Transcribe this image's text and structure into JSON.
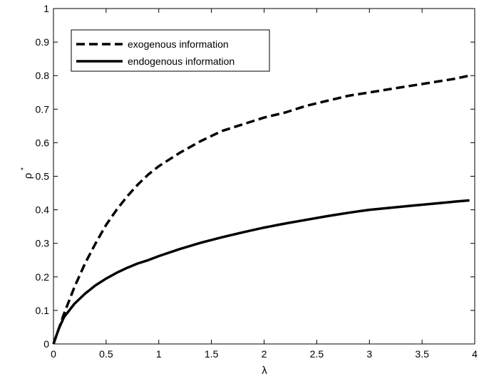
{
  "chart_data": {
    "type": "line",
    "title": "",
    "xlabel": "λ",
    "ylabel": "ρ",
    "ylabel_superscript": "*",
    "xlim": [
      0,
      4
    ],
    "ylim": [
      0,
      1
    ],
    "xticks": [
      0,
      0.5,
      1,
      1.5,
      2,
      2.5,
      3,
      3.5,
      4
    ],
    "xtick_labels": [
      "0",
      "0.5",
      "1",
      "1.5",
      "2",
      "2.5",
      "3",
      "3.5",
      "4"
    ],
    "yticks": [
      0,
      0.1,
      0.2,
      0.3,
      0.4,
      0.5,
      0.6,
      0.7,
      0.8,
      0.9,
      1
    ],
    "ytick_labels": [
      "0",
      "0.1",
      "0.2",
      "0.3",
      "0.4",
      "0.5",
      "0.6",
      "0.7",
      "0.8",
      "0.9",
      "1"
    ],
    "grid": false,
    "legend_position": "top-left",
    "series": [
      {
        "name": "exogenous information",
        "style": "dashed",
        "color": "#000000",
        "x": [
          0,
          0.05,
          0.1,
          0.2,
          0.3,
          0.4,
          0.5,
          0.6,
          0.7,
          0.8,
          0.9,
          1.0,
          1.2,
          1.4,
          1.6,
          1.8,
          2.0,
          2.2,
          2.4,
          2.6,
          2.8,
          3.0,
          3.2,
          3.4,
          3.6,
          3.8,
          3.95
        ],
        "y": [
          0,
          0.045,
          0.09,
          0.17,
          0.24,
          0.3,
          0.355,
          0.4,
          0.44,
          0.475,
          0.505,
          0.53,
          0.57,
          0.605,
          0.635,
          0.655,
          0.675,
          0.69,
          0.71,
          0.725,
          0.74,
          0.75,
          0.76,
          0.77,
          0.78,
          0.79,
          0.8
        ]
      },
      {
        "name": "endogenous information",
        "style": "solid",
        "color": "#000000",
        "x": [
          0,
          0.05,
          0.1,
          0.2,
          0.3,
          0.4,
          0.5,
          0.6,
          0.7,
          0.8,
          0.9,
          1.0,
          1.2,
          1.4,
          1.6,
          1.8,
          2.0,
          2.2,
          2.4,
          2.6,
          2.8,
          3.0,
          3.2,
          3.4,
          3.6,
          3.8,
          3.95
        ],
        "y": [
          0,
          0.045,
          0.08,
          0.12,
          0.15,
          0.175,
          0.195,
          0.212,
          0.227,
          0.24,
          0.25,
          0.262,
          0.283,
          0.302,
          0.318,
          0.333,
          0.347,
          0.359,
          0.37,
          0.381,
          0.391,
          0.4,
          0.406,
          0.412,
          0.418,
          0.424,
          0.428
        ]
      }
    ]
  }
}
